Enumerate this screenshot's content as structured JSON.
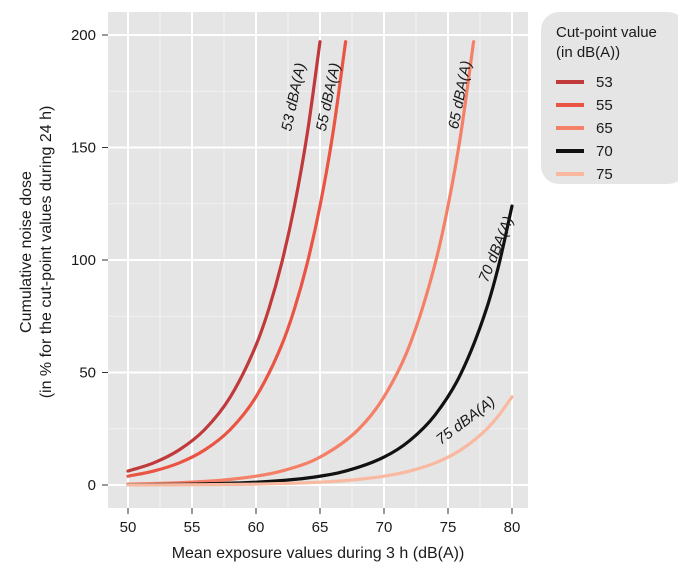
{
  "chart_data": {
    "type": "line",
    "xlabel": "Mean exposure values during 3 h (dB(A))",
    "ylabel_line1": "Cumulative noise dose",
    "ylabel_line2": "(in % for the cut-point values during 24 h)",
    "xlim": [
      50,
      80
    ],
    "ylim": [
      0,
      200
    ],
    "x_ticks": [
      "50",
      "55",
      "60",
      "65",
      "70",
      "75",
      "80"
    ],
    "y_ticks": [
      "0",
      "50",
      "100",
      "150",
      "200"
    ],
    "grid": true,
    "legend": {
      "title_line1": "Cut-point value",
      "title_line2": "(in dB(A))",
      "position": "top-right"
    },
    "series": [
      {
        "name": "53",
        "label": "53 dBA(A)",
        "color": "#c0393b",
        "x": [
          50,
          52,
          54,
          56,
          58,
          60,
          61,
          62,
          63,
          64,
          65
        ],
        "y": [
          6.2,
          9.8,
          15.6,
          24.7,
          39.2,
          62.1,
          78.2,
          98.5,
          124,
          156,
          197
        ]
      },
      {
        "name": "55",
        "label": "55 dBA(A)",
        "color": "#ea5444",
        "x": [
          50,
          52,
          54,
          56,
          58,
          60,
          62,
          63,
          64,
          65,
          66,
          67
        ],
        "y": [
          3.9,
          6.2,
          9.8,
          15.6,
          24.7,
          39.2,
          62.1,
          78.2,
          98.5,
          124,
          156,
          197
        ]
      },
      {
        "name": "65",
        "label": "65 dBA(A)",
        "color": "#f58068",
        "x": [
          50,
          54,
          58,
          62,
          65,
          68,
          70,
          72,
          74,
          75,
          76,
          77
        ],
        "y": [
          0.4,
          1,
          2.5,
          6.2,
          12.4,
          24.7,
          39.2,
          62.1,
          98.5,
          124,
          156,
          197
        ]
      },
      {
        "name": "70",
        "label": "70 dBA(A)",
        "color": "#111111",
        "x": [
          50,
          55,
          60,
          64,
          67,
          70,
          72,
          74,
          76,
          78,
          79,
          80
        ],
        "y": [
          0.12,
          0.39,
          1.24,
          3.1,
          6.2,
          12.4,
          19.7,
          31.2,
          49.4,
          78.2,
          98.5,
          124
        ]
      },
      {
        "name": "75",
        "label": "75 dBA(A)",
        "color": "#f9b9a1",
        "x": [
          50,
          55,
          60,
          65,
          68,
          70,
          72,
          74,
          76,
          78,
          79,
          80
        ],
        "y": [
          0.04,
          0.12,
          0.39,
          1.24,
          2.5,
          3.9,
          6.2,
          9.8,
          15.6,
          24.7,
          31.2,
          39.2
        ]
      }
    ]
  }
}
